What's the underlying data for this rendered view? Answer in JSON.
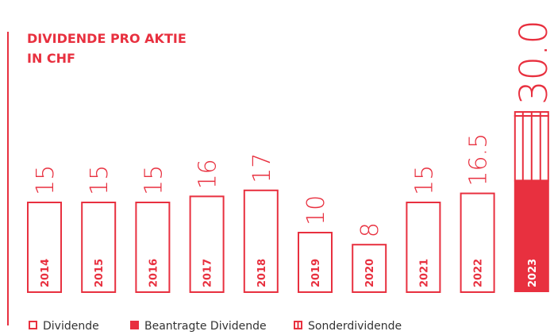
{
  "chart_data": {
    "type": "bar",
    "title_lines": [
      "DIVIDENDE PRO AKTIE",
      "IN CHF"
    ],
    "categories": [
      "2014",
      "2015",
      "2016",
      "2017",
      "2018",
      "2019",
      "2020",
      "2021",
      "2022",
      "2023"
    ],
    "series": [
      {
        "name": "Dividende",
        "color": "#e8303f",
        "style": "outline",
        "values": [
          15,
          15,
          15,
          16,
          17,
          10,
          8,
          15,
          16.5,
          null
        ]
      },
      {
        "name": "Beantragte Dividende",
        "color": "#e8303f",
        "style": "filled",
        "values": [
          null,
          null,
          null,
          null,
          null,
          null,
          null,
          null,
          null,
          18.5
        ]
      },
      {
        "name": "Sonderdividende",
        "color": "#e8303f",
        "style": "striped",
        "values": [
          null,
          null,
          null,
          null,
          null,
          null,
          null,
          null,
          null,
          11.5
        ]
      }
    ],
    "stack_total": {
      "value": 30,
      "label": "30.0"
    },
    "ylim": [
      0,
      30
    ]
  }
}
